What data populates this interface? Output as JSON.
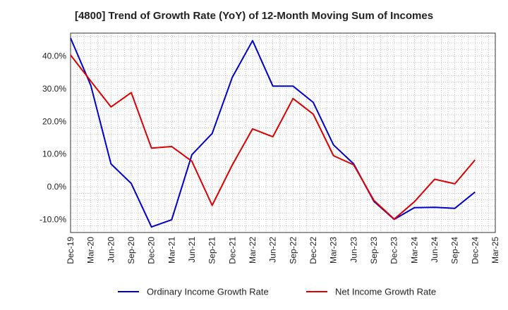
{
  "chart_data": {
    "type": "line",
    "title": "[4800]  Trend of Growth Rate (YoY) of 12-Month Moving Sum of Incomes",
    "xlabel": "",
    "ylabel": "",
    "categories": [
      "Dec-19",
      "Mar-20",
      "Jun-20",
      "Sep-20",
      "Dec-20",
      "Mar-21",
      "Jun-21",
      "Sep-21",
      "Dec-21",
      "Mar-22",
      "Jun-22",
      "Sep-22",
      "Dec-22",
      "Mar-23",
      "Jun-23",
      "Sep-23",
      "Dec-23",
      "Mar-24",
      "Jun-24",
      "Sep-24",
      "Dec-24",
      "Mar-25"
    ],
    "yticks": [
      -10,
      0,
      10,
      20,
      30,
      40
    ],
    "ytick_labels": [
      "-10.0%",
      "0.0%",
      "10.0%",
      "20.0%",
      "30.0%",
      "40.0%"
    ],
    "ylim": [
      -14,
      47
    ],
    "grid": true,
    "legend_position": "bottom",
    "series": [
      {
        "name": "Ordinary Income Growth Rate",
        "color": "#0000cc",
        "values": [
          45.5,
          31.0,
          7.0,
          1.0,
          -12.3,
          -10.1,
          9.8,
          16.3,
          33.5,
          44.7,
          30.8,
          30.8,
          25.8,
          12.8,
          7.0,
          -4.5,
          -10.0,
          -6.4,
          -6.3,
          -6.6,
          -1.6,
          null
        ]
      },
      {
        "name": "Net Income Growth Rate",
        "color": "#dd0000",
        "values": [
          40.3,
          32.3,
          24.4,
          28.8,
          11.8,
          12.3,
          7.8,
          -5.7,
          6.7,
          17.7,
          15.3,
          27.0,
          22.2,
          9.5,
          6.7,
          -4.2,
          -9.9,
          -4.6,
          2.3,
          0.9,
          8.2,
          null
        ]
      }
    ]
  }
}
